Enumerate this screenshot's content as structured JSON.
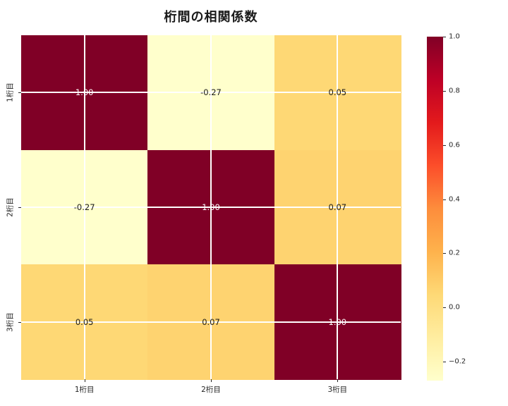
{
  "title": "桁間の相関係数",
  "chart_data": {
    "type": "heatmap",
    "title": "桁間の相関係数",
    "x_labels": [
      "1桁目",
      "2桁目",
      "3桁目"
    ],
    "y_labels": [
      "1桁目",
      "2桁目",
      "3桁目"
    ],
    "matrix": [
      [
        1.0,
        -0.27,
        0.05
      ],
      [
        -0.27,
        1.0,
        0.07
      ],
      [
        0.05,
        0.07,
        1.0
      ]
    ],
    "cell_labels": [
      [
        "1.00",
        "-0.27",
        "0.05"
      ],
      [
        "-0.27",
        "1.00",
        "0.07"
      ],
      [
        "0.05",
        "0.07",
        "1.00"
      ]
    ],
    "vmin": -0.27,
    "vmax": 1.0,
    "grid": true,
    "legend_position": "right-colorbar",
    "colormap": "YlOrRd",
    "colormap_stops": [
      {
        "t": 0.0,
        "color": "#ffffcc"
      },
      {
        "t": 0.125,
        "color": "#ffeda0"
      },
      {
        "t": 0.25,
        "color": "#fed976"
      },
      {
        "t": 0.375,
        "color": "#feb24c"
      },
      {
        "t": 0.5,
        "color": "#fd8d3c"
      },
      {
        "t": 0.625,
        "color": "#fc4e2a"
      },
      {
        "t": 0.75,
        "color": "#e31a1c"
      },
      {
        "t": 0.875,
        "color": "#bd0026"
      },
      {
        "t": 1.0,
        "color": "#800026"
      }
    ],
    "colorbar_ticks": [
      {
        "value": 1.0,
        "label": "1.0"
      },
      {
        "value": 0.8,
        "label": "0.8"
      },
      {
        "value": 0.6,
        "label": "0.6"
      },
      {
        "value": 0.4,
        "label": "0.4"
      },
      {
        "value": 0.2,
        "label": "0.2"
      },
      {
        "value": 0.0,
        "label": "0.0"
      },
      {
        "value": -0.2,
        "label": "−0.2"
      }
    ],
    "colors": {
      "background": "#ffffff",
      "grid_line": "#ffffff",
      "tick": "#262626",
      "annotation_dark": "#1a1a1a",
      "annotation_light": "#ffffff"
    }
  }
}
